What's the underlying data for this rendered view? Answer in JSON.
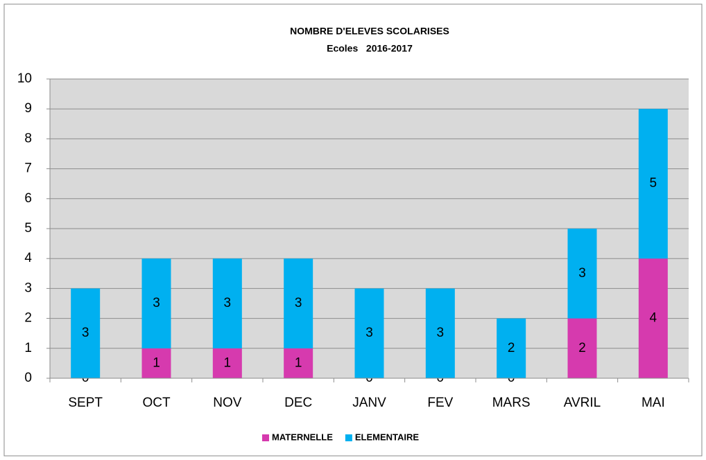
{
  "chart_data": {
    "type": "stacked_bar",
    "title": "NOMBRE D'ELEVES SCOLARISES",
    "subtitle": "Ecoles   2016-2017",
    "categories": [
      "SEPT",
      "OCT",
      "NOV",
      "DEC",
      "JANV",
      "FEV",
      "MARS",
      "AVRIL",
      "MAI"
    ],
    "series": [
      {
        "name": "MATERNELLE",
        "color": "#d63aae",
        "values": [
          0,
          1,
          1,
          1,
          0,
          0,
          0,
          2,
          4
        ]
      },
      {
        "name": "ELEMENTAIRE",
        "color": "#00b0f0",
        "values": [
          3,
          3,
          3,
          3,
          3,
          3,
          2,
          3,
          5
        ]
      }
    ],
    "ylim": [
      0,
      10
    ],
    "yticks": [
      0,
      1,
      2,
      3,
      4,
      5,
      6,
      7,
      8,
      9,
      10
    ],
    "grid": true,
    "legend": "bottom"
  }
}
